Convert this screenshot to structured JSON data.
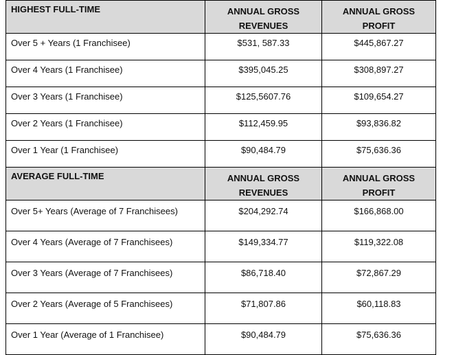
{
  "highest": {
    "header": {
      "label": "HIGHEST FULL-TIME",
      "revenues_line1": "ANNUAL GROSS",
      "revenues_line2": "REVENUES",
      "profit_line1": "ANNUAL GROSS",
      "profit_line2": "PROFIT"
    },
    "rows": [
      {
        "label": "Over 5 + Years (1 Franchisee)",
        "revenues": "$531, 587.33",
        "profit": "$445,867.27"
      },
      {
        "label": "Over 4 Years (1 Franchisee)",
        "revenues": "$395,045.25",
        "profit": "$308,897.27"
      },
      {
        "label": "Over 3 Years (1 Franchisee)",
        "revenues": "$125,5607.76",
        "profit": "$109,654.27"
      },
      {
        "label": "Over 2 Years (1 Franchisee)",
        "revenues": "$112,459.95",
        "profit": "$93,836.82"
      },
      {
        "label": "Over 1 Year (1 Franchisee)",
        "revenues": "$90,484.79",
        "profit": "$75,636.36"
      }
    ]
  },
  "average": {
    "header": {
      "label": "AVERAGE FULL-TIME",
      "revenues_line1": "ANNUAL GROSS",
      "revenues_line2": "REVENUES",
      "profit_line1": "ANNUAL GROSS",
      "profit_line2": "PROFIT"
    },
    "rows": [
      {
        "label": "Over 5+ Years (Average of 7 Franchisees)",
        "revenues": "$204,292.74",
        "profit": "$166,868.00"
      },
      {
        "label": "Over 4 Years (Average of 7 Franchisees)",
        "revenues": "$149,334.77",
        "profit": "$119,322.08"
      },
      {
        "label": "Over 3 Years (Average of 7 Franchisees)",
        "revenues": "$86,718.40",
        "profit": "$72,867.29"
      },
      {
        "label": "Over 2 Years (Average of 5 Franchisees)",
        "revenues": "$71,807.86",
        "profit": "$60,118.83"
      },
      {
        "label": "Over 1 Year (Average of 1 Franchisee)",
        "revenues": "$90,484.79",
        "profit": "$75,636.36"
      }
    ]
  },
  "colors": {
    "header_bg": "#d9d9d9",
    "border": "#000000",
    "text": "#111111"
  }
}
